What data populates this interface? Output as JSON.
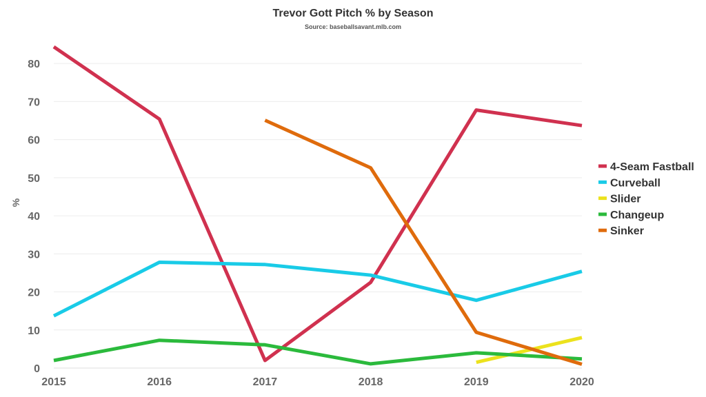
{
  "chart_data": {
    "type": "line",
    "title": "Trevor Gott Pitch % by Season",
    "subtitle": "Source: baseballsavant.mlb.com",
    "xlabel": "",
    "ylabel": "%",
    "x": [
      2015,
      2016,
      2017,
      2018,
      2019,
      2020
    ],
    "x_tick_labels": [
      "2015",
      "2016",
      "2017",
      "2018",
      "2019",
      "2020"
    ],
    "ylim": [
      0,
      88
    ],
    "y_ticks": [
      0,
      10,
      20,
      30,
      40,
      50,
      60,
      70,
      80
    ],
    "grid": true,
    "legend_position": "right",
    "series": [
      {
        "name": "4-Seam Fastball",
        "color": "#d0314f",
        "values": [
          84.4,
          65.4,
          2.0,
          22.5,
          67.8,
          63.7
        ]
      },
      {
        "name": "Curveball",
        "color": "#19cbe7",
        "values": [
          13.7,
          27.8,
          27.2,
          24.4,
          17.8,
          25.4
        ]
      },
      {
        "name": "Slider",
        "color": "#ece21d",
        "values": [
          null,
          null,
          null,
          null,
          1.5,
          8.0
        ]
      },
      {
        "name": "Changeup",
        "color": "#2bba3c",
        "values": [
          2.0,
          7.3,
          6.1,
          1.1,
          4.0,
          2.4
        ]
      },
      {
        "name": "Sinker",
        "color": "#df6b0c",
        "values": [
          null,
          null,
          65.1,
          52.6,
          9.4,
          1.0
        ]
      }
    ]
  }
}
